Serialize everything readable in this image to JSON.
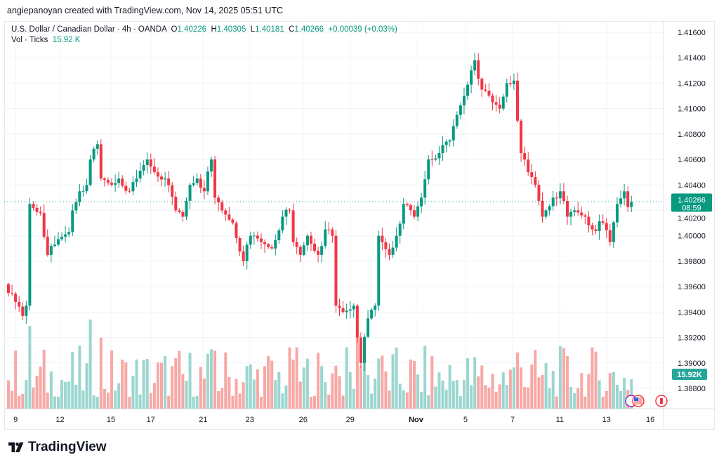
{
  "credit": "angiepanoyan created with TradingView.com, Nov 14, 2025 05:51 UTC",
  "legend": {
    "symbol": "U.S. Dollar / Canadian Dollar · 4h · OANDA",
    "o_label": "O",
    "o": "1.40226",
    "h_label": "H",
    "h": "1.40305",
    "l_label": "L",
    "l": "1.40181",
    "c_label": "C",
    "c": "1.40266",
    "change": "+0.00039 (+0.03%)",
    "vol_label": "Vol · Ticks",
    "vol": "15.92 K"
  },
  "logo": "TradingView",
  "colors": {
    "up": "#089981",
    "down": "#f23645",
    "vol_up": "#9bd6cf",
    "vol_down": "#f7a8a5",
    "grid": "#f0f3fa"
  },
  "chart_data": {
    "type": "candlestick",
    "title": "U.S. Dollar / Canadian Dollar · 4h · OANDA",
    "ylim": [
      1.388,
      1.416
    ],
    "xlim": [
      0,
      186
    ],
    "y_ticks": [
      "1.41600",
      "1.41400",
      "1.41200",
      "1.41000",
      "1.40800",
      "1.40600",
      "1.40400",
      "1.40200",
      "1.40000",
      "1.39800",
      "1.39600",
      "1.39400",
      "1.39200",
      "1.39000",
      "1.38800"
    ],
    "x_ticks": [
      {
        "label": "9",
        "bar": 2
      },
      {
        "label": "12",
        "bar": 14.5
      },
      {
        "label": "15",
        "bar": 28.8
      },
      {
        "label": "17",
        "bar": 40
      },
      {
        "label": "21",
        "bar": 54.7
      },
      {
        "label": "23",
        "bar": 67.8
      },
      {
        "label": "26",
        "bar": 82.8
      },
      {
        "label": "29",
        "bar": 96
      },
      {
        "label": "Nov",
        "bar": 114.5
      },
      {
        "label": "5",
        "bar": 128.4
      },
      {
        "label": "7",
        "bar": 141.6
      },
      {
        "label": "11",
        "bar": 154.9
      },
      {
        "label": "13",
        "bar": 168
      },
      {
        "label": "16",
        "bar": 180.3
      }
    ],
    "close_waypoints": [
      [
        0,
        1.3955
      ],
      [
        2,
        1.3948
      ],
      [
        4,
        1.3937
      ],
      [
        5,
        1.3945
      ],
      [
        6,
        1.4025
      ],
      [
        7,
        1.4022
      ],
      [
        9,
        1.4018
      ],
      [
        11,
        1.3985
      ],
      [
        13,
        1.3993
      ],
      [
        17,
        1.4003
      ],
      [
        18,
        1.402
      ],
      [
        20,
        1.4035
      ],
      [
        22,
        1.404
      ],
      [
        23,
        1.406
      ],
      [
        25,
        1.4072
      ],
      [
        26,
        1.4045
      ],
      [
        29,
        1.404
      ],
      [
        31,
        1.4045
      ],
      [
        34,
        1.4035
      ],
      [
        36,
        1.4045
      ],
      [
        39,
        1.406
      ],
      [
        41,
        1.405
      ],
      [
        44,
        1.4045
      ],
      [
        47,
        1.402
      ],
      [
        49,
        1.4015
      ],
      [
        51,
        1.404
      ],
      [
        53,
        1.4045
      ],
      [
        55,
        1.4035
      ],
      [
        57,
        1.406
      ],
      [
        58,
        1.403
      ],
      [
        60,
        1.402
      ],
      [
        63,
        1.401
      ],
      [
        66,
        1.398
      ],
      [
        68,
        1.4
      ],
      [
        71,
        1.3995
      ],
      [
        74,
        1.399
      ],
      [
        77,
        1.4015
      ],
      [
        79,
        1.402
      ],
      [
        80,
        1.3995
      ],
      [
        82,
        1.3985
      ],
      [
        84,
        1.4
      ],
      [
        87,
        1.3985
      ],
      [
        89,
        1.4005
      ],
      [
        91,
        1.4
      ],
      [
        92,
        1.3945
      ],
      [
        94,
        1.394
      ],
      [
        97,
        1.3945
      ],
      [
        99,
        1.39
      ],
      [
        101,
        1.3935
      ],
      [
        103,
        1.3945
      ],
      [
        104,
        1.4
      ],
      [
        107,
        1.3985
      ],
      [
        109,
        1.4
      ],
      [
        111,
        1.4025
      ],
      [
        114,
        1.4015
      ],
      [
        116,
        1.403
      ],
      [
        118,
        1.406
      ],
      [
        121,
        1.4065
      ],
      [
        124,
        1.4075
      ],
      [
        126,
        1.4095
      ],
      [
        128,
        1.411
      ],
      [
        130,
        1.413
      ],
      [
        131,
        1.4138
      ],
      [
        133,
        1.4115
      ],
      [
        136,
        1.4105
      ],
      [
        138,
        1.41
      ],
      [
        140,
        1.412
      ],
      [
        142,
        1.4122
      ],
      [
        144,
        1.4065
      ],
      [
        146,
        1.405
      ],
      [
        148,
        1.404
      ],
      [
        150,
        1.4015
      ],
      [
        151,
        1.402
      ],
      [
        153,
        1.403
      ],
      [
        155,
        1.4035
      ],
      [
        157,
        1.4015
      ],
      [
        159,
        1.402
      ],
      [
        162,
        1.4015
      ],
      [
        164,
        1.4005
      ],
      [
        167,
        1.401
      ],
      [
        169,
        1.3995
      ],
      [
        171,
        1.4025
      ],
      [
        173,
        1.4035
      ],
      [
        174,
        1.40226
      ],
      [
        175,
        1.40266
      ]
    ],
    "last_price": "1.40266",
    "countdown": "08:59",
    "last_volume": "15.92K",
    "volume_range_k": [
      6,
      50
    ]
  }
}
